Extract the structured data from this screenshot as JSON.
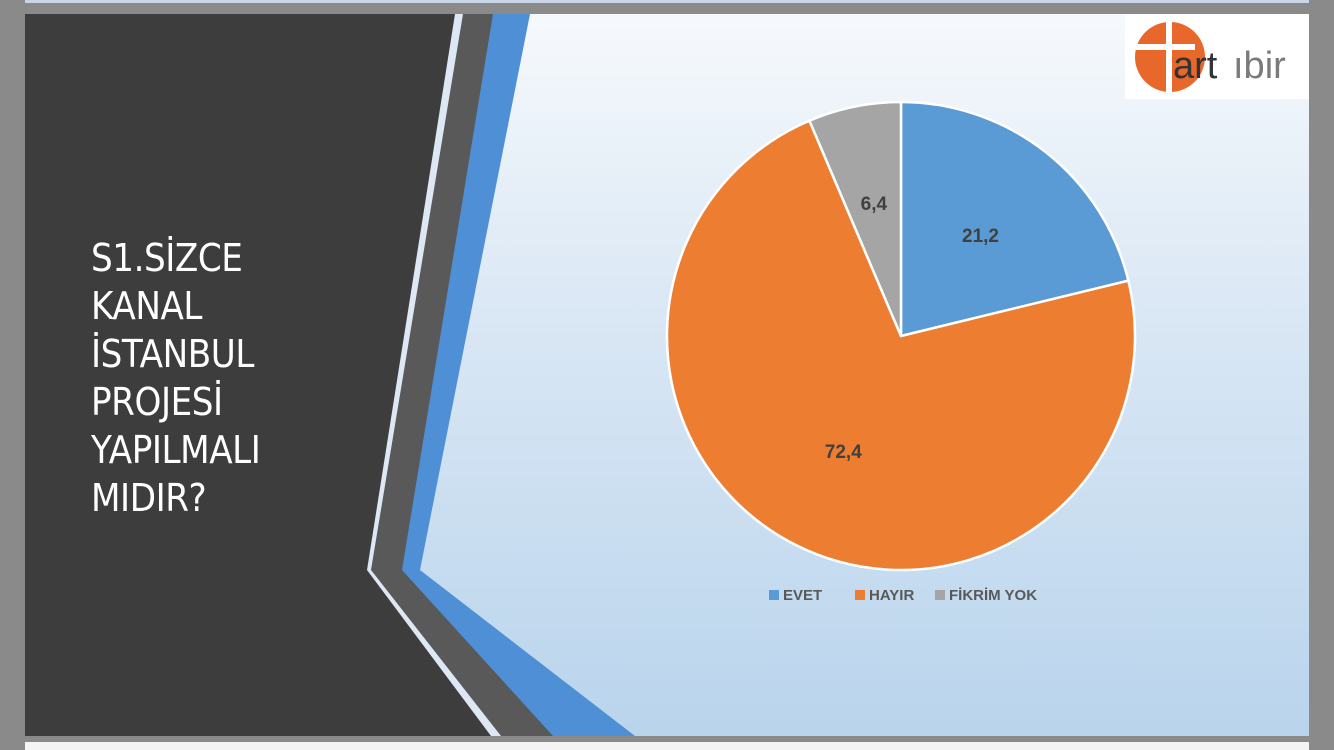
{
  "slide": {
    "title": "S1.SİZCE KANAL İSTANBUL PROJESİ YAPILMALI MIDIR?"
  },
  "logo": {
    "text_main": "art",
    "text_sub": "ıbir",
    "accent_color": "#e8672a",
    "text_color": "#333333"
  },
  "chart_data": {
    "type": "pie",
    "categories": [
      "EVET",
      "HAYIR",
      "FİKRİM YOK"
    ],
    "values": [
      21.2,
      72.4,
      6.4
    ],
    "data_labels": [
      "21,2",
      "72,4",
      "6,4"
    ],
    "colors": [
      "#5b9bd5",
      "#ed7d31",
      "#a5a5a5"
    ],
    "legend_position": "bottom"
  }
}
